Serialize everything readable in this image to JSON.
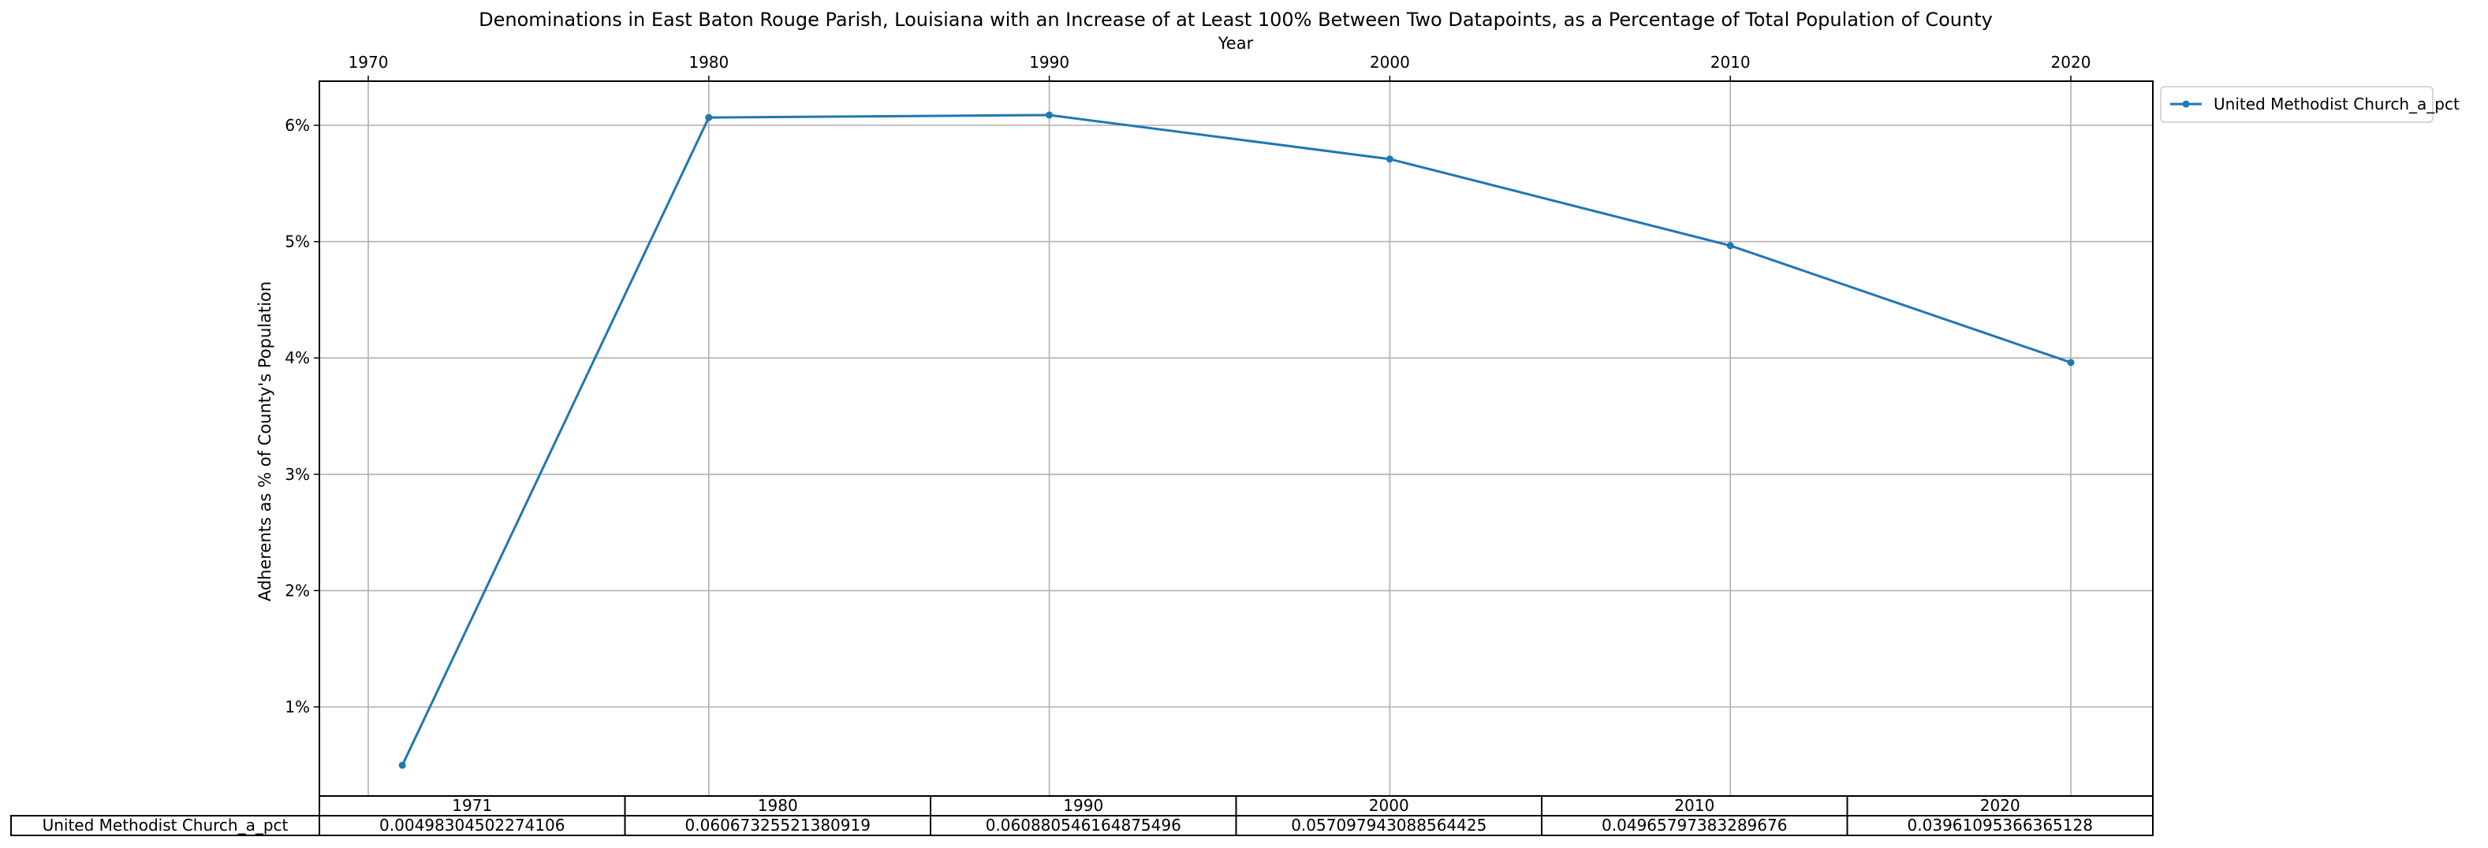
{
  "chart_data": {
    "type": "line",
    "title": "Denominations in East Baton Rouge Parish, Louisiana with an Increase of at Least 100% Between Two Datapoints, as a Percentage of Total Population of County",
    "xlabel": "Year",
    "ylabel": "Adherents as % of County's Population",
    "x": [
      1971,
      1980,
      1990,
      2000,
      2010,
      2020
    ],
    "xticks": [
      "1970",
      "1980",
      "1990",
      "2000",
      "2010",
      "2020"
    ],
    "xlim": [
      1970,
      2020
    ],
    "yticks": [
      "1%",
      "2%",
      "3%",
      "4%",
      "5%",
      "6%"
    ],
    "ylim": [
      0,
      6.5
    ],
    "grid": true,
    "legend_position": "upper right, outside plot",
    "series": [
      {
        "name": "United Methodist Church_a_pct",
        "color": "#1f77b4",
        "values": [
          0.498304502274106,
          6.067325521380919,
          6.0880546164875495,
          5.709794308856442,
          4.965797383289676,
          3.961095366365128
        ]
      }
    ],
    "table": {
      "columns": [
        "1971",
        "1980",
        "1990",
        "2000",
        "2010",
        "2020"
      ],
      "row_label": "United Methodist Church_a_pct",
      "cells": [
        "0.00498304502274106",
        "0.06067325521380919",
        "0.060880546164875496",
        "0.057097943088564425",
        "0.04965797383289676",
        "0.03961095366365128"
      ]
    }
  }
}
